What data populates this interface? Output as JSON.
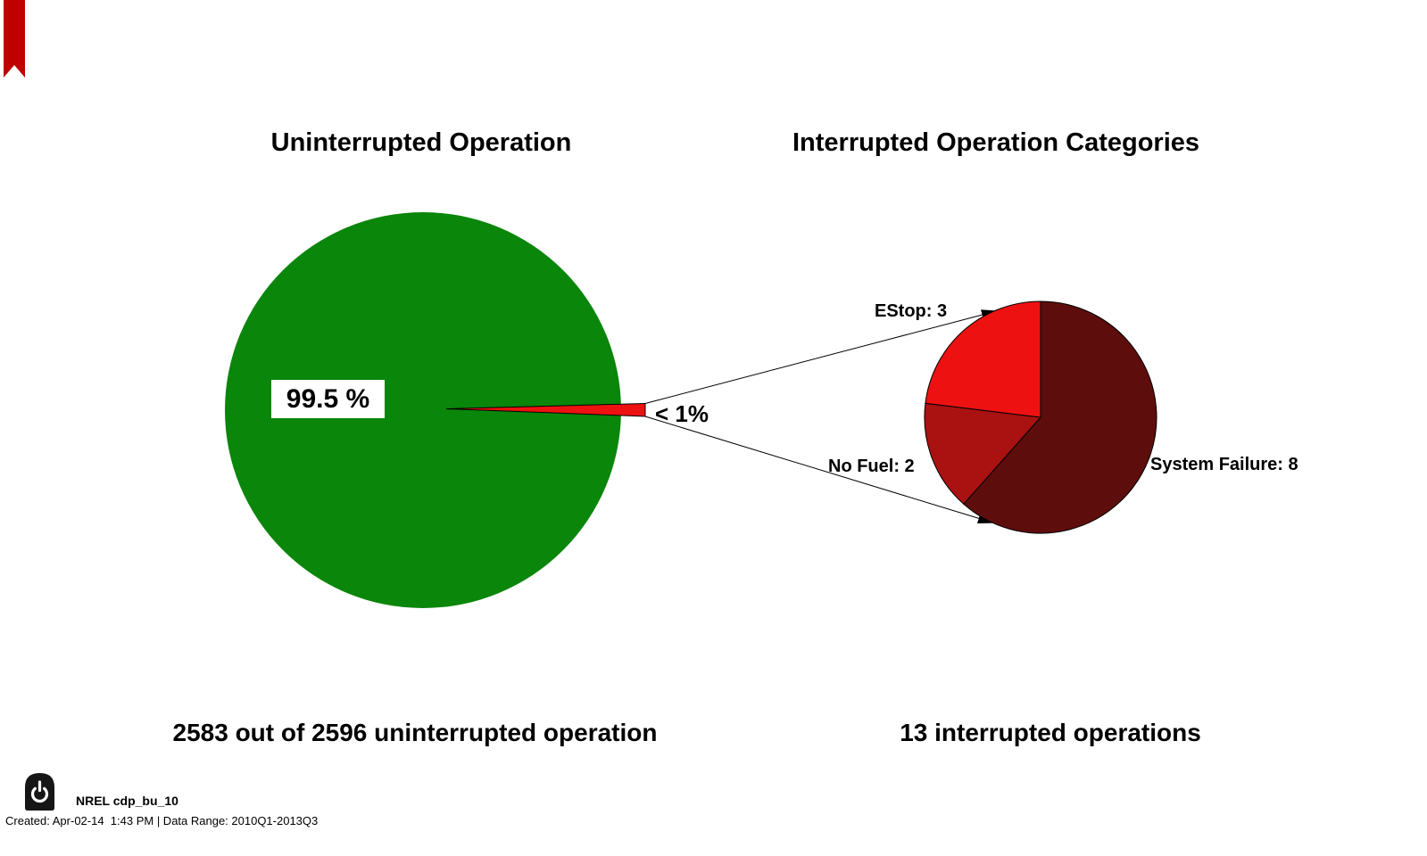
{
  "branding": {
    "bookmark_color": "#C00000"
  },
  "left_chart": {
    "title": "Uninterrupted Operation",
    "percent_label": "99.5 %",
    "slice_label": "< 1%",
    "caption": "2583 out of 2596 uninterrupted operation",
    "main_color": "#0A860A",
    "slice_color": "#EE1111"
  },
  "right_chart": {
    "title": "Interrupted Operation Categories",
    "caption": "13 interrupted operations",
    "slices": [
      {
        "name": "System Failure",
        "label": "System Failure: 8",
        "value": 8,
        "color": "#5E0D0D"
      },
      {
        "name": "No Fuel",
        "label": "No Fuel: 2",
        "value": 2,
        "color": "#AA1111"
      },
      {
        "name": "EStop",
        "label": "EStop: 3",
        "value": 3,
        "color": "#EE1111"
      }
    ]
  },
  "footer": {
    "logo": "power-icon",
    "doc_id": "NREL cdp_bu_10",
    "created_line": "Created: Apr-02-14  1:43 PM | Data Range: 2010Q1-2013Q3"
  },
  "chart_data": [
    {
      "type": "pie",
      "title": "Uninterrupted Operation",
      "labels": [
        "Uninterrupted operation",
        "Interrupted operation"
      ],
      "values": [
        2583,
        13
      ],
      "total": 2596,
      "slice_text_labels": [
        "99.5 %",
        "< 1%"
      ],
      "colors": [
        "#0A860A",
        "#EE1111"
      ],
      "caption": "2583 out of 2596 uninterrupted operation",
      "exploded": [
        false,
        true
      ],
      "legend_position": "none"
    },
    {
      "type": "pie",
      "title": "Interrupted Operation Categories",
      "labels": [
        "System Failure",
        "No Fuel",
        "EStop"
      ],
      "values": [
        8,
        2,
        3
      ],
      "total": 13,
      "colors": [
        "#5E0D0D",
        "#AA1111",
        "#EE1111"
      ],
      "caption": "13 interrupted operations",
      "start_at": "12-oclock",
      "direction": "clockwise",
      "legend_position": "none"
    }
  ]
}
